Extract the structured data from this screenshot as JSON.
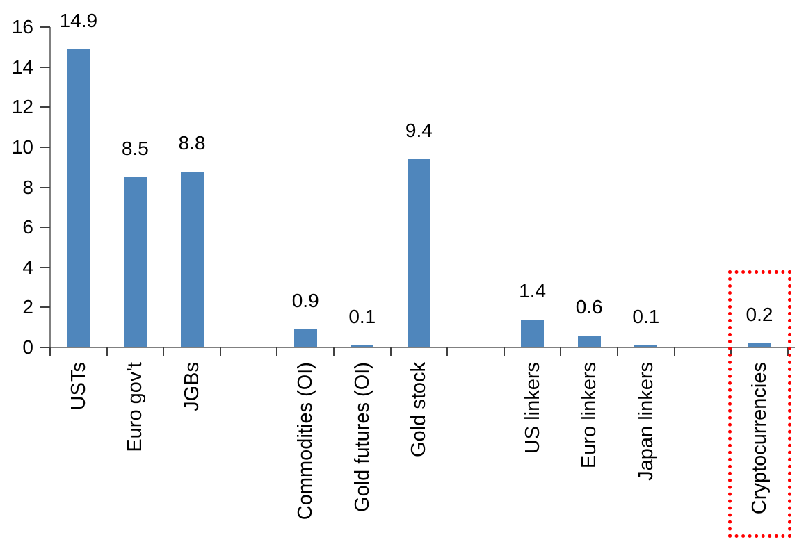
{
  "chart_data": {
    "type": "bar",
    "title": "",
    "xlabel": "",
    "ylabel": "",
    "categories": [
      "USTs",
      "Euro gov't",
      "JGBs",
      "",
      "Commodities (OI)",
      "Gold futures (OI)",
      "Gold stock",
      "",
      "US linkers",
      "Euro linkers",
      "Japan linkers",
      "",
      "Cryptocurrencies"
    ],
    "values": [
      14.9,
      8.5,
      8.8,
      null,
      0.9,
      0.1,
      9.4,
      null,
      1.4,
      0.6,
      0.1,
      null,
      0.2
    ],
    "value_labels": [
      "14.9",
      "8.5",
      "8.8",
      "",
      "0.9",
      "0.1",
      "9.4",
      "",
      "1.4",
      "0.6",
      "0.1",
      "",
      "0.2"
    ],
    "ylim": [
      0,
      16
    ],
    "yticks": [
      0,
      2,
      4,
      6,
      8,
      10,
      12,
      14,
      16
    ],
    "ytick_labels": [
      "0",
      "2",
      "4",
      "6",
      "8",
      "10",
      "12",
      "14",
      "16"
    ],
    "grid": false,
    "legend": false,
    "legend_position": "none",
    "bar_color": "#4F86BC",
    "axis_line_color": "#808080",
    "tick_color": "#404040",
    "text_color": "#000000",
    "highlight_box": {
      "category": "Cryptocurrencies",
      "color": "#FF0000",
      "style": "dotted"
    }
  }
}
